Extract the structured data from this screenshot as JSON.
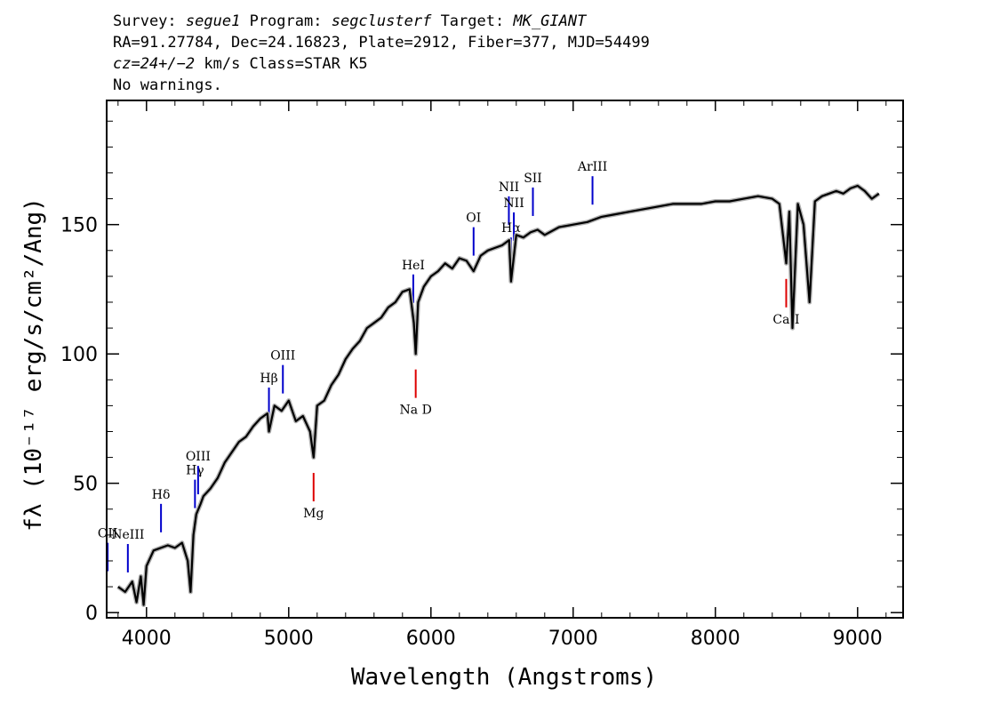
{
  "header": {
    "line1": {
      "survey_label": "Survey:",
      "survey": "segue1",
      "program_label": "Program:",
      "program": "segclusterf",
      "target_label": "Target:",
      "target": "MK_GIANT"
    },
    "line2": "RA=91.27784, Dec=24.16823, Plate=2912, Fiber=377, MJD=54499",
    "line3": {
      "cz": "cz=24+/−2",
      "rest": "km/s Class=STAR K5"
    },
    "line4": "No warnings."
  },
  "chart_data": {
    "type": "line",
    "xlabel": "Wavelength (Angstroms)",
    "ylabel": "fλ (10⁻¹⁷ erg/s/cm²/Ang)",
    "xlim": [
      3720,
      9320
    ],
    "ylim": [
      -2,
      198
    ],
    "x_ticks": [
      4000,
      5000,
      6000,
      7000,
      8000,
      9000
    ],
    "y_ticks": [
      0,
      50,
      100,
      150
    ],
    "series": [
      {
        "color": "#000000",
        "x": [
          3800,
          3850,
          3900,
          3930,
          3960,
          3980,
          4000,
          4050,
          4100,
          4150,
          4200,
          4250,
          4290,
          4310,
          4330,
          4350,
          4380,
          4400,
          4450,
          4500,
          4550,
          4600,
          4650,
          4700,
          4750,
          4800,
          4850,
          4861,
          4900,
          4950,
          5000,
          5050,
          5100,
          5150,
          5175,
          5200,
          5250,
          5300,
          5350,
          5400,
          5450,
          5500,
          5550,
          5600,
          5650,
          5700,
          5750,
          5800,
          5850,
          5880,
          5893,
          5910,
          5950,
          6000,
          6050,
          6100,
          6150,
          6200,
          6250,
          6300,
          6350,
          6400,
          6450,
          6500,
          6550,
          6563,
          6600,
          6650,
          6700,
          6750,
          6800,
          6900,
          7000,
          7100,
          7200,
          7300,
          7400,
          7500,
          7600,
          7700,
          7800,
          7900,
          8000,
          8100,
          8200,
          8300,
          8400,
          8450,
          8498,
          8520,
          8542,
          8580,
          8620,
          8662,
          8700,
          8750,
          8800,
          8850,
          8900,
          8950,
          9000,
          9050,
          9100,
          9150
        ],
        "y": [
          10,
          8,
          12,
          4,
          14,
          3,
          18,
          24,
          25,
          26,
          25,
          27,
          20,
          8,
          30,
          38,
          42,
          45,
          48,
          52,
          58,
          62,
          66,
          68,
          72,
          75,
          77,
          70,
          80,
          78,
          82,
          74,
          76,
          70,
          60,
          80,
          82,
          88,
          92,
          98,
          102,
          105,
          110,
          112,
          114,
          118,
          120,
          124,
          125,
          112,
          100,
          120,
          126,
          130,
          132,
          135,
          133,
          137,
          136,
          132,
          138,
          140,
          141,
          142,
          144,
          128,
          146,
          145,
          147,
          148,
          146,
          149,
          150,
          151,
          153,
          154,
          155,
          156,
          157,
          158,
          158,
          158,
          159,
          159,
          160,
          161,
          160,
          158,
          135,
          155,
          110,
          158,
          150,
          120,
          159,
          161,
          162,
          163,
          162,
          164,
          165,
          163,
          160,
          162
        ]
      }
    ],
    "emission_lines": [
      {
        "label": "OII",
        "wave": 3727
      },
      {
        "label": "NeIII",
        "wave": 3869
      },
      {
        "label": "Hδ",
        "wave": 4102
      },
      {
        "label": "Hγ",
        "wave": 4341
      },
      {
        "label": "OIII",
        "wave": 4363
      },
      {
        "label": "Hβ",
        "wave": 4861
      },
      {
        "label": "OIII",
        "wave": 4959
      },
      {
        "label": "HeI",
        "wave": 5876
      },
      {
        "label": "OI",
        "wave": 6300
      },
      {
        "label": "NII",
        "wave": 6548
      },
      {
        "label": "Hα",
        "wave": 6563
      },
      {
        "label": "NII",
        "wave": 6583
      },
      {
        "label": "SII",
        "wave": 6717
      },
      {
        "label": "ArIII",
        "wave": 7136
      }
    ],
    "absorption_lines": [
      {
        "label": "Mg",
        "wave": 5175
      },
      {
        "label": "Na D",
        "wave": 5893
      },
      {
        "label": "CaII",
        "wave": 8498
      }
    ],
    "colors": {
      "spectrum": "#000000",
      "error": "#b0b0b0",
      "emission": "#0000cc",
      "absorption": "#dd0000"
    }
  }
}
